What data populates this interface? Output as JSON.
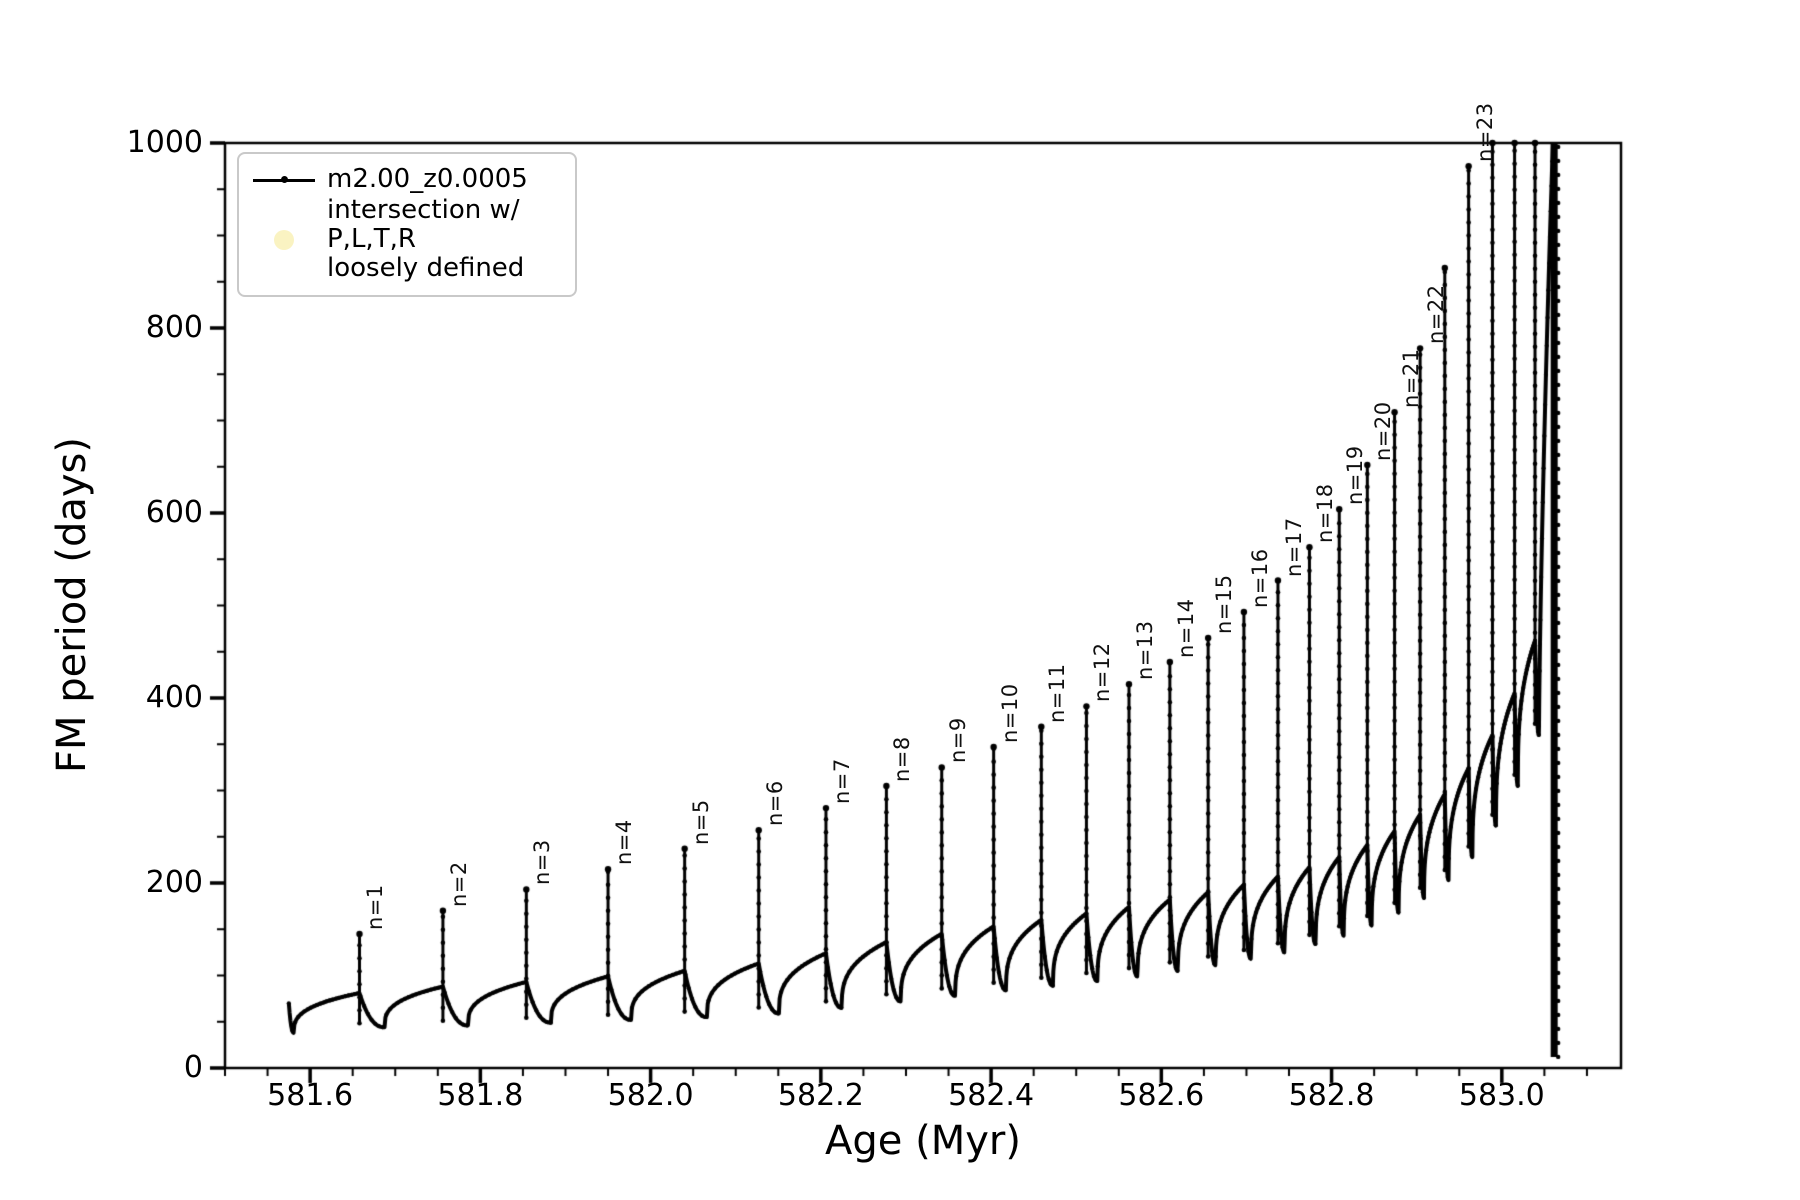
{
  "chart_data": {
    "type": "line",
    "title": "",
    "xlabel": "Age (Myr)",
    "ylabel": "FM period (days)",
    "xlim": [
      581.5,
      583.14
    ],
    "ylim": [
      0,
      1000
    ],
    "grid": false,
    "xticks": {
      "major_values": [
        581.6,
        581.8,
        582.0,
        582.2,
        582.4,
        582.6,
        582.8,
        583.0
      ],
      "labels": [
        "581.6",
        "581.8",
        "582.0",
        "582.2",
        "582.4",
        "582.6",
        "582.8",
        "583.0"
      ],
      "minor_step": 0.05
    },
    "yticks": {
      "major_values": [
        0,
        200,
        400,
        600,
        800,
        1000
      ],
      "labels": [
        "0",
        "200",
        "400",
        "600",
        "800",
        "1000"
      ],
      "minor_step": 50
    },
    "legend": {
      "position": "upper left",
      "entries": [
        {
          "label": "m2.00_z0.0005",
          "marker": "line-dot",
          "color": "#000000"
        },
        {
          "label_line1": "intersection w/ P,L,T,R",
          "label_line2": "loosely defined",
          "marker": "circle",
          "color": "#faf3c2"
        }
      ]
    },
    "series": [
      {
        "name": "m2.00_z0.0005",
        "color": "#000000",
        "style": "line+dot-markers",
        "start": {
          "age": 581.575,
          "top_value": 70,
          "bottom_value": 38
        },
        "teeth_note": "each tooth: plateau value reached just before spike at 'age', spike rises to 'peak', curve dips to 'dip' after spike",
        "teeth": [
          {
            "label": "n=1",
            "age": 581.658,
            "peak": 145,
            "plateau": 81,
            "dip": 44
          },
          {
            "label": "n=2",
            "age": 581.756,
            "peak": 170,
            "plateau": 88,
            "dip": 46
          },
          {
            "label": "n=3",
            "age": 581.854,
            "peak": 193,
            "plateau": 93,
            "dip": 49
          },
          {
            "label": "n=4",
            "age": 581.95,
            "peak": 215,
            "plateau": 99,
            "dip": 52
          },
          {
            "label": "n=5",
            "age": 582.04,
            "peak": 237,
            "plateau": 105,
            "dip": 55
          },
          {
            "label": "n=6",
            "age": 582.127,
            "peak": 257,
            "plateau": 113,
            "dip": 59
          },
          {
            "label": "n=7",
            "age": 582.206,
            "peak": 281,
            "plateau": 124,
            "dip": 65
          },
          {
            "label": "n=8",
            "age": 582.277,
            "peak": 305,
            "plateau": 136,
            "dip": 72
          },
          {
            "label": "n=9",
            "age": 582.342,
            "peak": 325,
            "plateau": 145,
            "dip": 78
          },
          {
            "label": "n=10",
            "age": 582.403,
            "peak": 347,
            "plateau": 153,
            "dip": 84
          },
          {
            "label": "n=11",
            "age": 582.459,
            "peak": 369,
            "plateau": 160,
            "dip": 89
          },
          {
            "label": "n=12",
            "age": 582.512,
            "peak": 391,
            "plateau": 167,
            "dip": 94
          },
          {
            "label": "n=13",
            "age": 582.562,
            "peak": 415,
            "plateau": 174,
            "dip": 99
          },
          {
            "label": "n=14",
            "age": 582.61,
            "peak": 439,
            "plateau": 182,
            "dip": 105
          },
          {
            "label": "n=15",
            "age": 582.655,
            "peak": 465,
            "plateau": 190,
            "dip": 111
          },
          {
            "label": "n=16",
            "age": 582.697,
            "peak": 493,
            "plateau": 198,
            "dip": 118
          },
          {
            "label": "n=17",
            "age": 582.737,
            "peak": 527,
            "plateau": 207,
            "dip": 125
          },
          {
            "label": "n=18",
            "age": 582.774,
            "peak": 563,
            "plateau": 217,
            "dip": 134
          },
          {
            "label": "n=19",
            "age": 582.809,
            "peak": 604,
            "plateau": 228,
            "dip": 143
          },
          {
            "label": "n=20",
            "age": 582.842,
            "peak": 652,
            "plateau": 241,
            "dip": 154
          },
          {
            "label": "n=21",
            "age": 582.874,
            "peak": 709,
            "plateau": 256,
            "dip": 168
          },
          {
            "label": "n=22",
            "age": 582.904,
            "peak": 778,
            "plateau": 274,
            "dip": 184
          },
          {
            "label": null,
            "age": 582.933,
            "peak": 865,
            "plateau": 296,
            "dip": 203
          },
          {
            "label": "n=23",
            "age": 582.961,
            "peak": 975,
            "plateau": 324,
            "dip": 228
          },
          {
            "label": null,
            "age": 582.989,
            "peak": 1005,
            "plateau": 360,
            "dip": 262
          },
          {
            "label": null,
            "age": 583.015,
            "peak": 1005,
            "plateau": 405,
            "dip": 305
          },
          {
            "label": null,
            "age": 583.039,
            "peak": 1005,
            "plateau": 462,
            "dip": 360
          }
        ],
        "final_collapse": {
          "rise_end_age": 583.06,
          "rise_to": 1000,
          "drop_age": 583.0615,
          "drop_to": 12
        }
      }
    ]
  },
  "axes_text": {
    "xlabel": "Age (Myr)",
    "ylabel": "FM period (days)"
  },
  "legend_text": {
    "entry1": "m2.00_z0.0005",
    "entry2_line1": "intersection w/ P,L,T,R",
    "entry2_line2": "loosely defined"
  }
}
